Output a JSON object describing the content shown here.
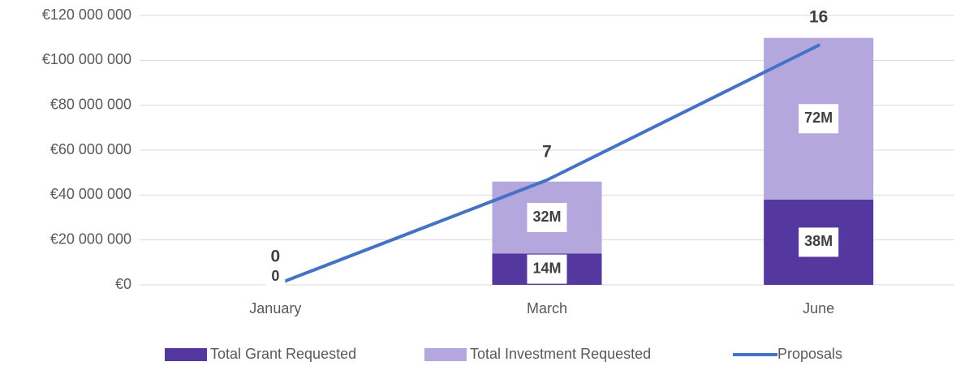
{
  "chart_data": {
    "type": "bar",
    "categories": [
      "January",
      "March",
      "June"
    ],
    "series": [
      {
        "name": "Total Grant Requested",
        "color": "#5438a0",
        "values": [
          0,
          14000000,
          38000000
        ],
        "value_labels": [
          "0",
          "14M",
          "38M"
        ]
      },
      {
        "name": "Total Investment Requested",
        "color": "#b4a7dd",
        "values": [
          0,
          32000000,
          72000000
        ],
        "value_labels": [
          null,
          "32M",
          "72M"
        ]
      },
      {
        "name": "Proposals",
        "type": "line",
        "axis": "y2",
        "color": "#4472c4",
        "values": [
          0,
          7,
          16
        ]
      }
    ],
    "ylim": [
      0,
      120000000
    ],
    "yticks": [
      {
        "value": 0,
        "label": "€0"
      },
      {
        "value": 20000000,
        "label": "€20 000 000"
      },
      {
        "value": 40000000,
        "label": "€40 000 000"
      },
      {
        "value": 60000000,
        "label": "€60 000 000"
      },
      {
        "value": 80000000,
        "label": "€80 000 000"
      },
      {
        "value": 100000000,
        "label": "€100 000 000"
      },
      {
        "value": 120000000,
        "label": "€120 000 000"
      }
    ],
    "y2lim": [
      0,
      18
    ],
    "grid": true,
    "legend": "bottom"
  }
}
